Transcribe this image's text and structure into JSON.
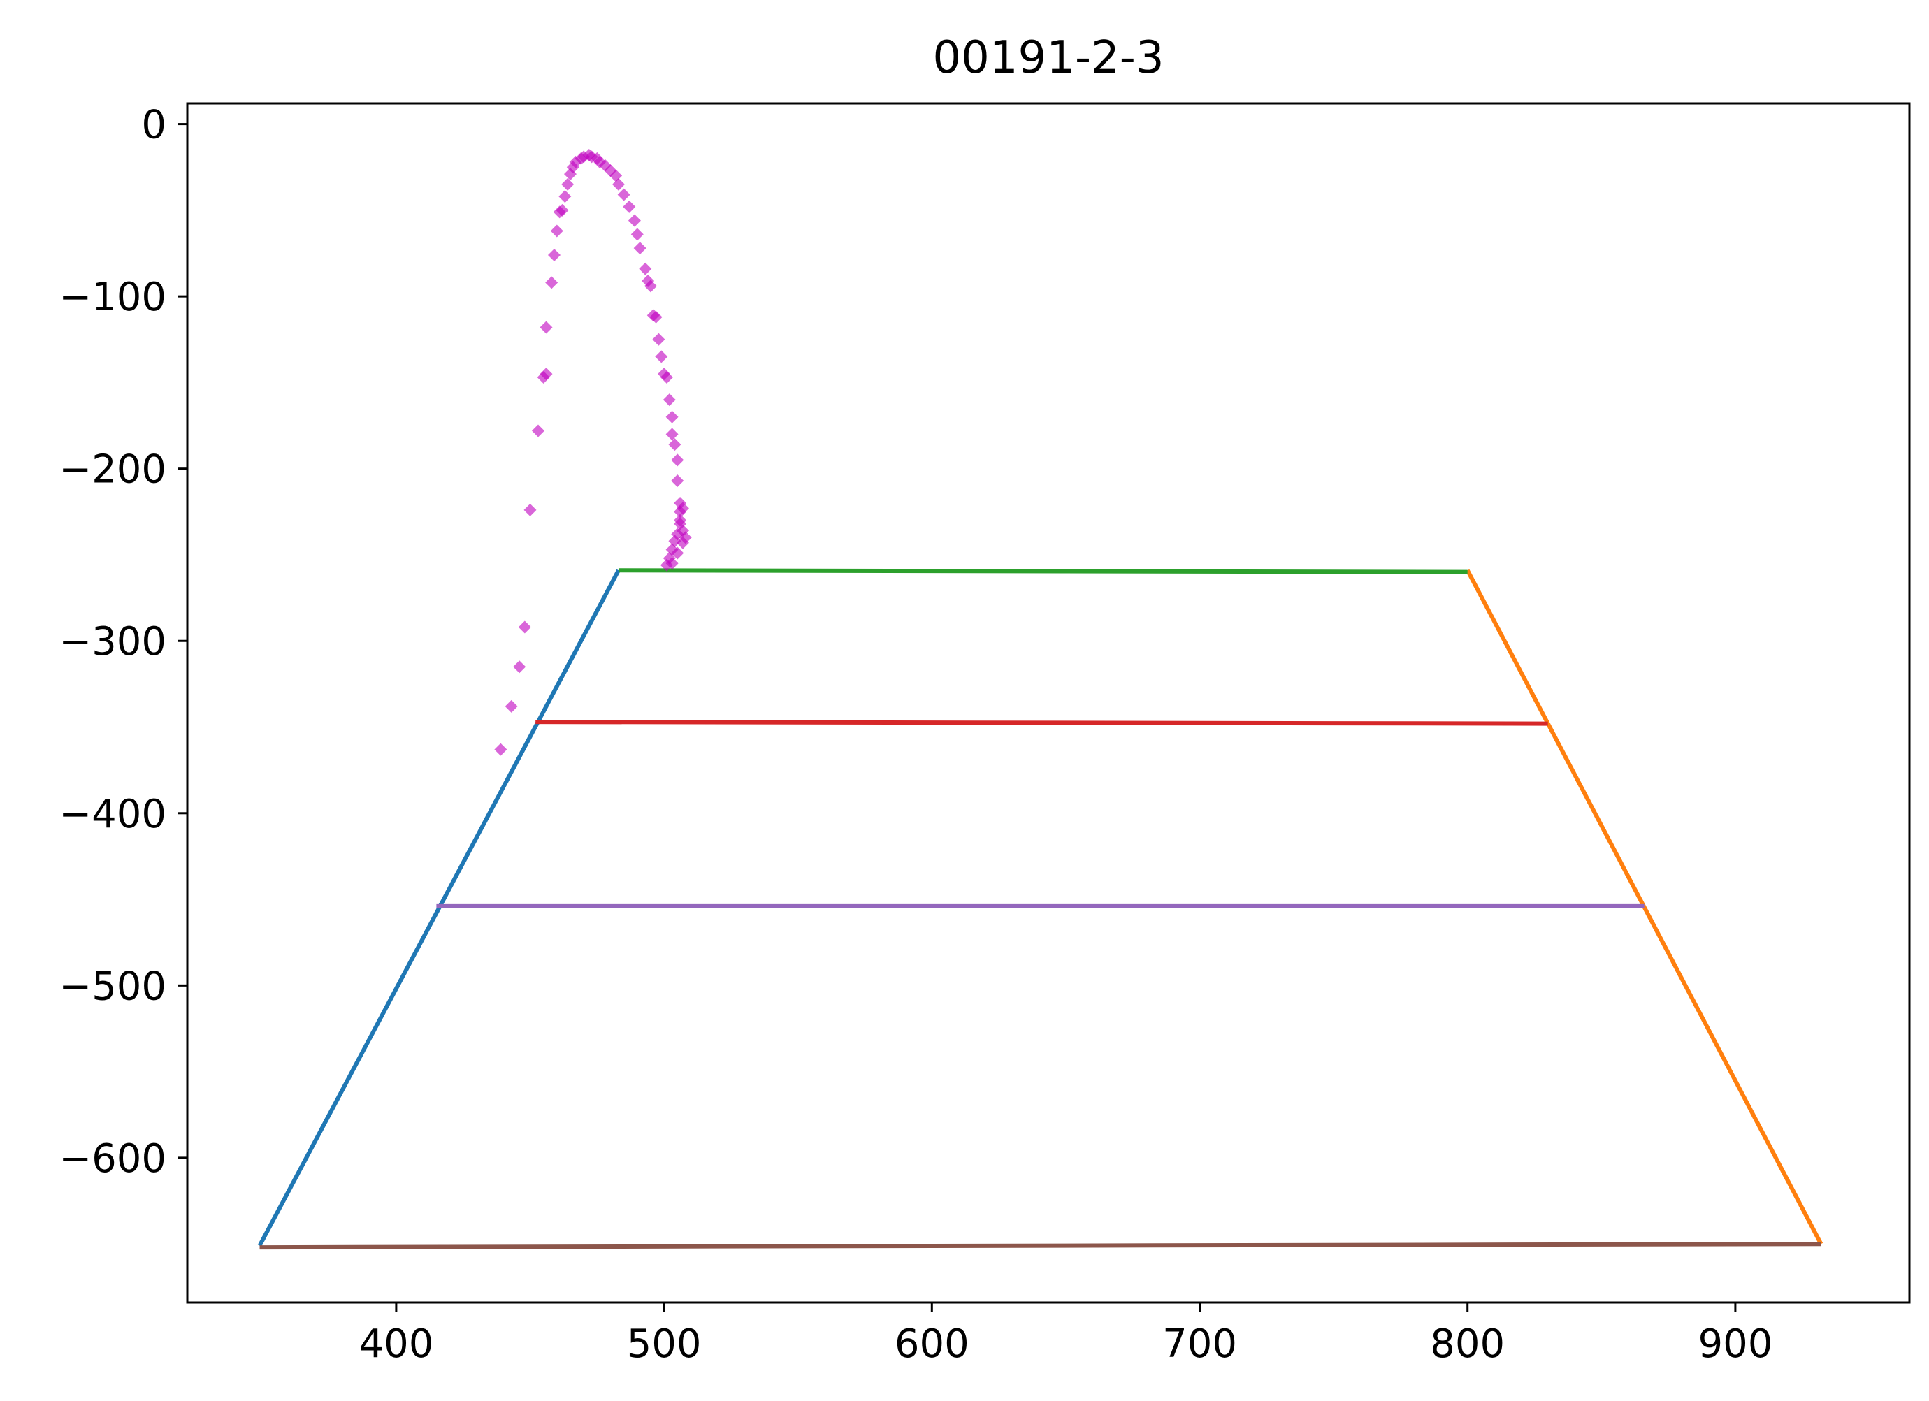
{
  "chart_data": {
    "type": "scatter",
    "title": "00191-2-3",
    "xlabel": "",
    "ylabel": "",
    "xlim": [
      322,
      965
    ],
    "ylim": [
      -684,
      12
    ],
    "xticks": [
      400,
      500,
      600,
      700,
      800,
      900
    ],
    "yticks": [
      0,
      -100,
      -200,
      -300,
      -400,
      -500,
      -600
    ],
    "xtick_labels": [
      "400",
      "500",
      "600",
      "700",
      "800",
      "900"
    ],
    "ytick_labels": [
      "0",
      "−100",
      "−200",
      "−300",
      "−400",
      "−500",
      "−600"
    ],
    "grid": false,
    "line_series": [
      {
        "color": "#1f77b4",
        "x": [
          349,
          483
        ],
        "y": [
          -651,
          -259
        ]
      },
      {
        "color": "#ff7f0e",
        "x": [
          800,
          932
        ],
        "y": [
          -259,
          -650
        ]
      },
      {
        "color": "#2ca02c",
        "x": [
          483,
          800
        ],
        "y": [
          -259,
          -260
        ]
      },
      {
        "color": "#d62728",
        "x": [
          452,
          830
        ],
        "y": [
          -347,
          -348
        ]
      },
      {
        "color": "#9467bd",
        "x": [
          415,
          866
        ],
        "y": [
          -454,
          -454
        ]
      },
      {
        "color": "#8c564b",
        "x": [
          349,
          932
        ],
        "y": [
          -652,
          -650
        ]
      }
    ],
    "scatter_series": {
      "color": "#bf00bf",
      "points": [
        [
          439,
          -363
        ],
        [
          443,
          -338
        ],
        [
          446,
          -315
        ],
        [
          448,
          -292
        ],
        [
          450,
          -224
        ],
        [
          453,
          -178
        ],
        [
          455,
          -147
        ],
        [
          456,
          -145
        ],
        [
          456,
          -118
        ],
        [
          458,
          -92
        ],
        [
          459,
          -76
        ],
        [
          460,
          -62
        ],
        [
          461,
          -51
        ],
        [
          462,
          -50
        ],
        [
          463,
          -42
        ],
        [
          464,
          -35
        ],
        [
          465,
          -29
        ],
        [
          466,
          -25
        ],
        [
          467,
          -22
        ],
        [
          469,
          -20
        ],
        [
          470,
          -19
        ],
        [
          472,
          -18
        ],
        [
          473,
          -19
        ],
        [
          475,
          -20
        ],
        [
          476,
          -22
        ],
        [
          478,
          -24
        ],
        [
          480,
          -27
        ],
        [
          482,
          -30
        ],
        [
          483,
          -35
        ],
        [
          485,
          -41
        ],
        [
          487,
          -48
        ],
        [
          489,
          -56
        ],
        [
          490,
          -64
        ],
        [
          491,
          -72
        ],
        [
          493,
          -84
        ],
        [
          494,
          -91
        ],
        [
          495,
          -94
        ],
        [
          496,
          -111
        ],
        [
          497,
          -112
        ],
        [
          498,
          -125
        ],
        [
          499,
          -135
        ],
        [
          500,
          -145
        ],
        [
          501,
          -147
        ],
        [
          502,
          -160
        ],
        [
          503,
          -170
        ],
        [
          503,
          -180
        ],
        [
          504,
          -186
        ],
        [
          505,
          -195
        ],
        [
          505,
          -207
        ],
        [
          506,
          -220
        ],
        [
          506,
          -225
        ],
        [
          506,
          -232
        ],
        [
          505,
          -238
        ],
        [
          504,
          -242
        ],
        [
          503,
          -247
        ],
        [
          502,
          -252
        ],
        [
          503,
          -255
        ],
        [
          505,
          -249
        ],
        [
          507,
          -243
        ],
        [
          508,
          -240
        ],
        [
          507,
          -236
        ],
        [
          506,
          -230
        ],
        [
          507,
          -223
        ],
        [
          501,
          -256
        ]
      ]
    }
  }
}
